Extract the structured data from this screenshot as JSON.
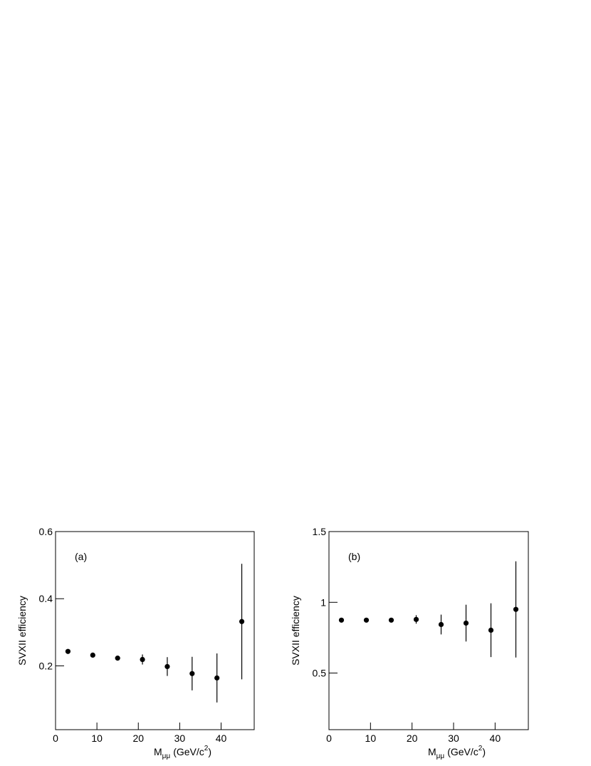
{
  "chart_data": [
    {
      "type": "scatter",
      "label": "(a)",
      "ylabel": "SVXII efficiency",
      "xlabel": {
        "main": "M",
        "sub": "μμ",
        "unit": "(GeV/c",
        "sup": "2",
        "close": ")"
      },
      "color": "#000000",
      "x": [
        3,
        9,
        15,
        21,
        27,
        33,
        39,
        45
      ],
      "values": [
        0.243,
        0.232,
        0.223,
        0.219,
        0.198,
        0.177,
        0.164,
        0.332
      ],
      "errors": [
        0.005,
        0.004,
        0.004,
        0.015,
        0.028,
        0.05,
        0.073,
        0.172
      ],
      "xlim": [
        0,
        48
      ],
      "ylim": [
        0.01,
        0.6
      ],
      "xticks": [
        0,
        10,
        20,
        30,
        40
      ],
      "yticks": [
        0.2,
        0.4,
        0.6
      ]
    },
    {
      "type": "scatter",
      "label": "(b)",
      "ylabel": "SVXII efficiency",
      "xlabel": {
        "main": "M",
        "sub": "μμ",
        "unit": "(GeV/c",
        "sup": "2",
        "close": ")"
      },
      "color": "#000000",
      "x": [
        3,
        9,
        15,
        21,
        27,
        33,
        39,
        45
      ],
      "values": [
        0.874,
        0.874,
        0.874,
        0.879,
        0.843,
        0.853,
        0.803,
        0.95
      ],
      "errors": [
        0.008,
        0.008,
        0.008,
        0.03,
        0.07,
        0.13,
        0.19,
        0.34
      ],
      "xlim": [
        0,
        48
      ],
      "ylim": [
        0.1,
        1.5
      ],
      "xticks": [
        0,
        10,
        20,
        30,
        40
      ],
      "yticks": [
        0.5,
        1,
        1.5
      ]
    }
  ]
}
